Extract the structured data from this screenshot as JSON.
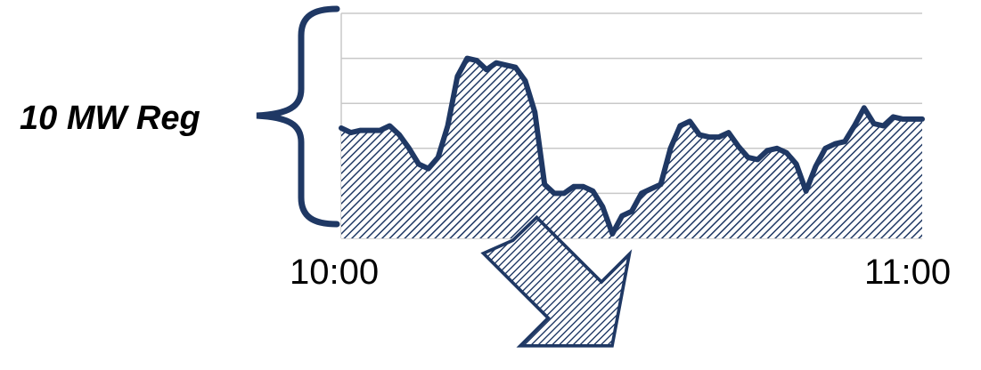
{
  "bracket_label": "10 MW Reg",
  "colors": {
    "series": "#1f3864",
    "grid": "#c8c8c8",
    "brace": "#1f3864"
  },
  "chart_data": {
    "type": "area",
    "title": "",
    "xlabel": "",
    "ylabel": "",
    "x_tick_labels": [
      "10:00",
      "11:00"
    ],
    "x": [
      0,
      1,
      2,
      3,
      4,
      5,
      6,
      7,
      8,
      9,
      10,
      11,
      12,
      13,
      14,
      15,
      16,
      17,
      18,
      19,
      20,
      21,
      22,
      23,
      24,
      25,
      26,
      27,
      28,
      29,
      30,
      31,
      32,
      33,
      34,
      35,
      36,
      37,
      38,
      39,
      40,
      41,
      42,
      43,
      44,
      45,
      46,
      47,
      48,
      49,
      50,
      51,
      52,
      53,
      54,
      55,
      56,
      57,
      58,
      59,
      60
    ],
    "values": [
      4.9,
      4.7,
      4.8,
      4.8,
      4.8,
      5.0,
      4.6,
      4.0,
      3.3,
      3.1,
      3.6,
      5.0,
      7.2,
      8.0,
      7.9,
      7.5,
      7.8,
      7.7,
      7.6,
      7.0,
      5.6,
      2.4,
      2.0,
      2.0,
      2.3,
      2.3,
      2.1,
      1.4,
      0.2,
      1.0,
      1.2,
      2.0,
      2.2,
      2.4,
      4.0,
      5.0,
      5.2,
      4.6,
      4.5,
      4.5,
      4.7,
      4.1,
      3.6,
      3.5,
      3.9,
      4.0,
      3.8,
      3.3,
      2.1,
      3.2,
      4.0,
      4.2,
      4.3,
      5.0,
      5.8,
      5.1,
      5.0,
      5.4,
      5.3,
      5.3,
      5.3
    ],
    "ylim": [
      0,
      10
    ],
    "grid": true,
    "legend": "none"
  }
}
